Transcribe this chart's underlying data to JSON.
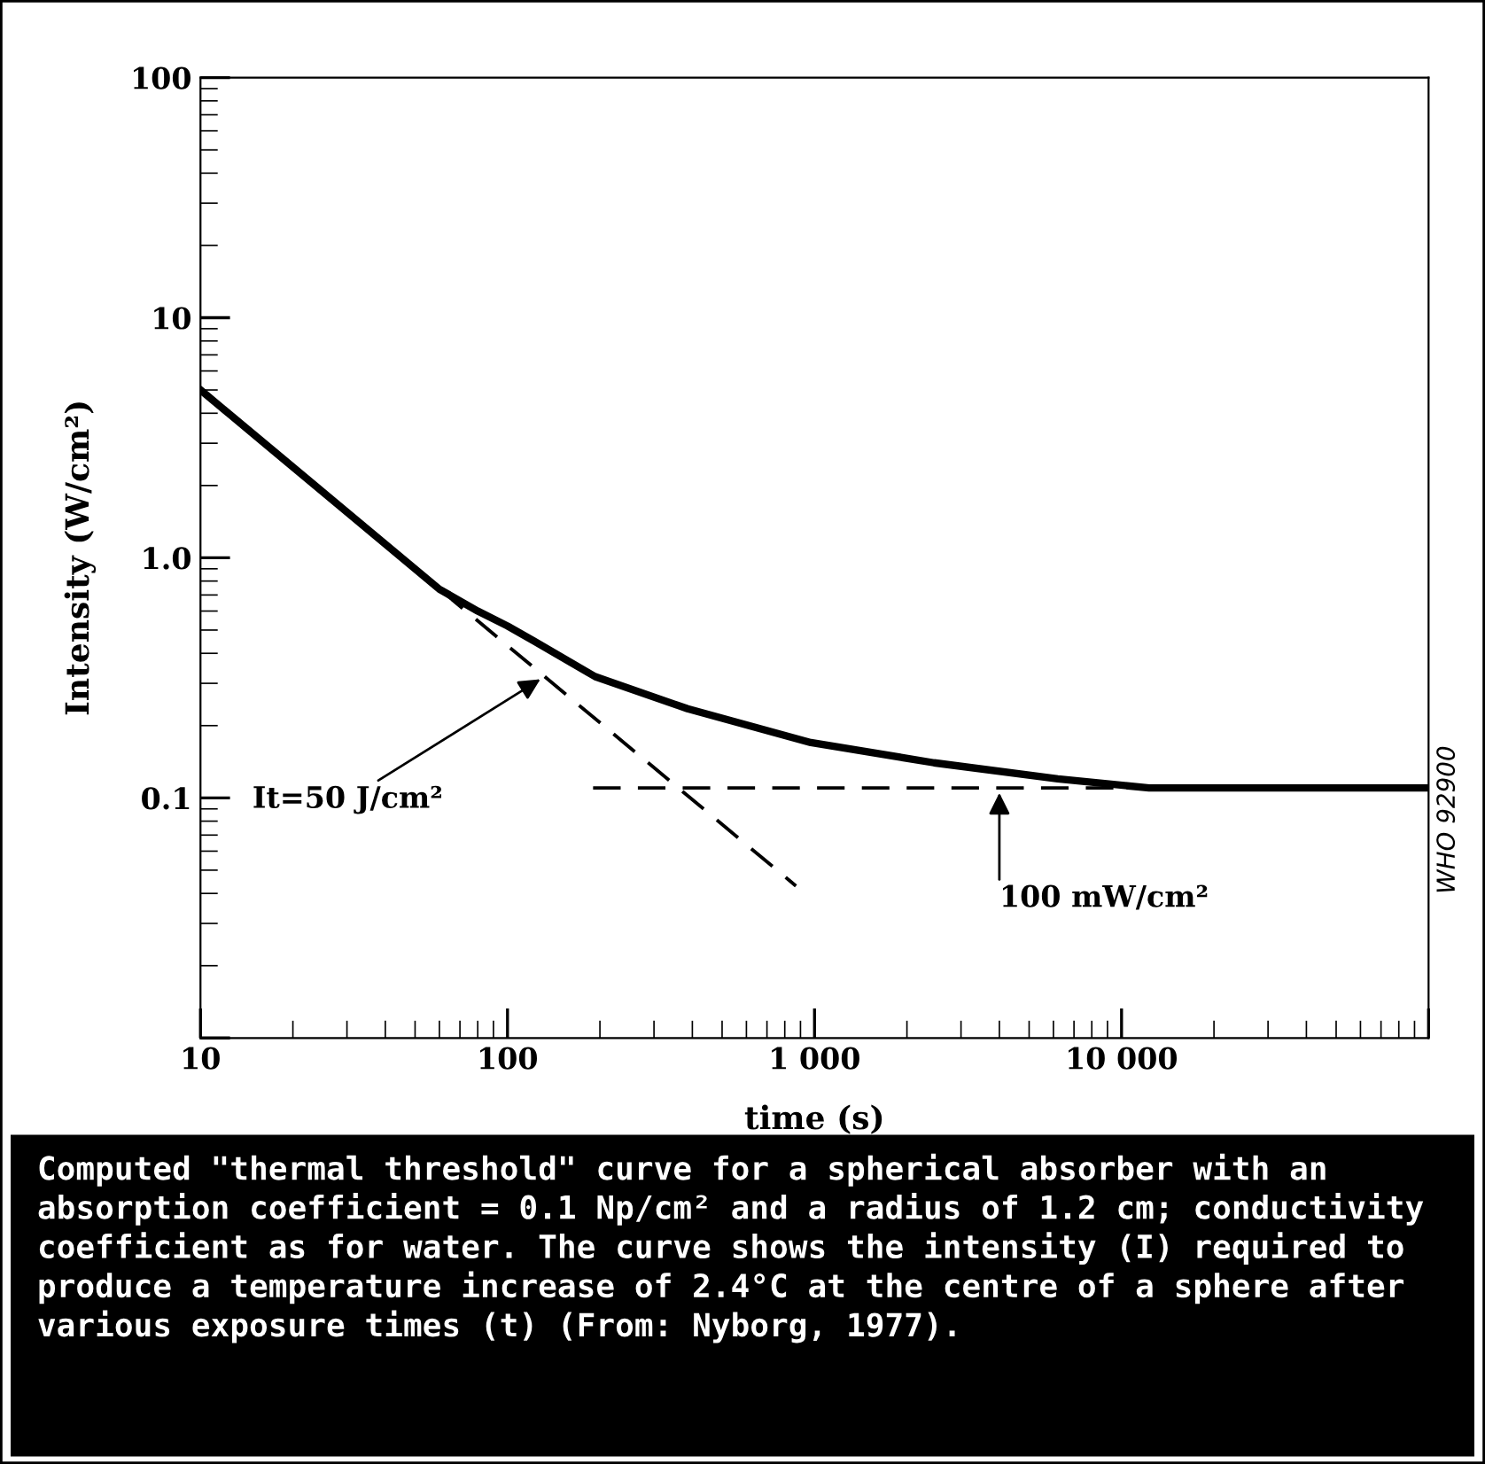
{
  "chart_data": {
    "type": "line",
    "xlabel": "time (s)",
    "ylabel": "Intensity (W/cm²)",
    "log": "xy",
    "grid": false,
    "xlim": [
      10,
      100000
    ],
    "ylim": [
      0.01,
      100
    ],
    "xticks": [
      10,
      100,
      {
        "value": 1000,
        "label": "1 000"
      },
      {
        "value": 10000,
        "label": "10 000"
      },
      {
        "value": 100000,
        "label": null
      }
    ],
    "yticks": [
      {
        "value": 0.01,
        "label": null
      },
      0.1,
      {
        "value": 1,
        "label": "1.0"
      },
      10,
      100
    ],
    "series": [
      {
        "color": "#000000",
        "line_style": "solid",
        "x": [
          10,
          30,
          60,
          80,
          100,
          122,
          193,
          386,
          973,
          2450,
          6200,
          12300,
          100000
        ],
        "values": [
          5,
          1.55,
          0.74,
          0.6,
          0.52,
          0.45,
          0.32,
          0.235,
          0.17,
          0.14,
          0.12,
          0.11,
          0.11
        ]
      },
      {
        "color": "#000000",
        "line_style": "dashed",
        "x": [
          10,
          870
        ],
        "values": [
          5,
          0.043
        ]
      },
      {
        "color": "#000000",
        "line_style": "dashed",
        "x": [
          190,
          100000
        ],
        "values": [
          0.11,
          0.11
        ]
      }
    ],
    "annotations": [
      {
        "text": "It=50 J/cm²",
        "x": 132,
        "y": 0.32
      },
      {
        "text": "100 mW/cm²",
        "x": 4000,
        "y": 0.11
      },
      "WHO 92900",
      "Computed \"thermal threshold\" curve for a spherical absorber with an absorption coefficient = 0.1 Np/cm² and a radius of 1.2 cm; conductivity coefficient as for water. The curve shows the intensity (I) required to produce a temperature increase of 2.4°C at the centre of a sphere after various exposure times (t) (From: Nyborg, 1977)."
    ]
  }
}
